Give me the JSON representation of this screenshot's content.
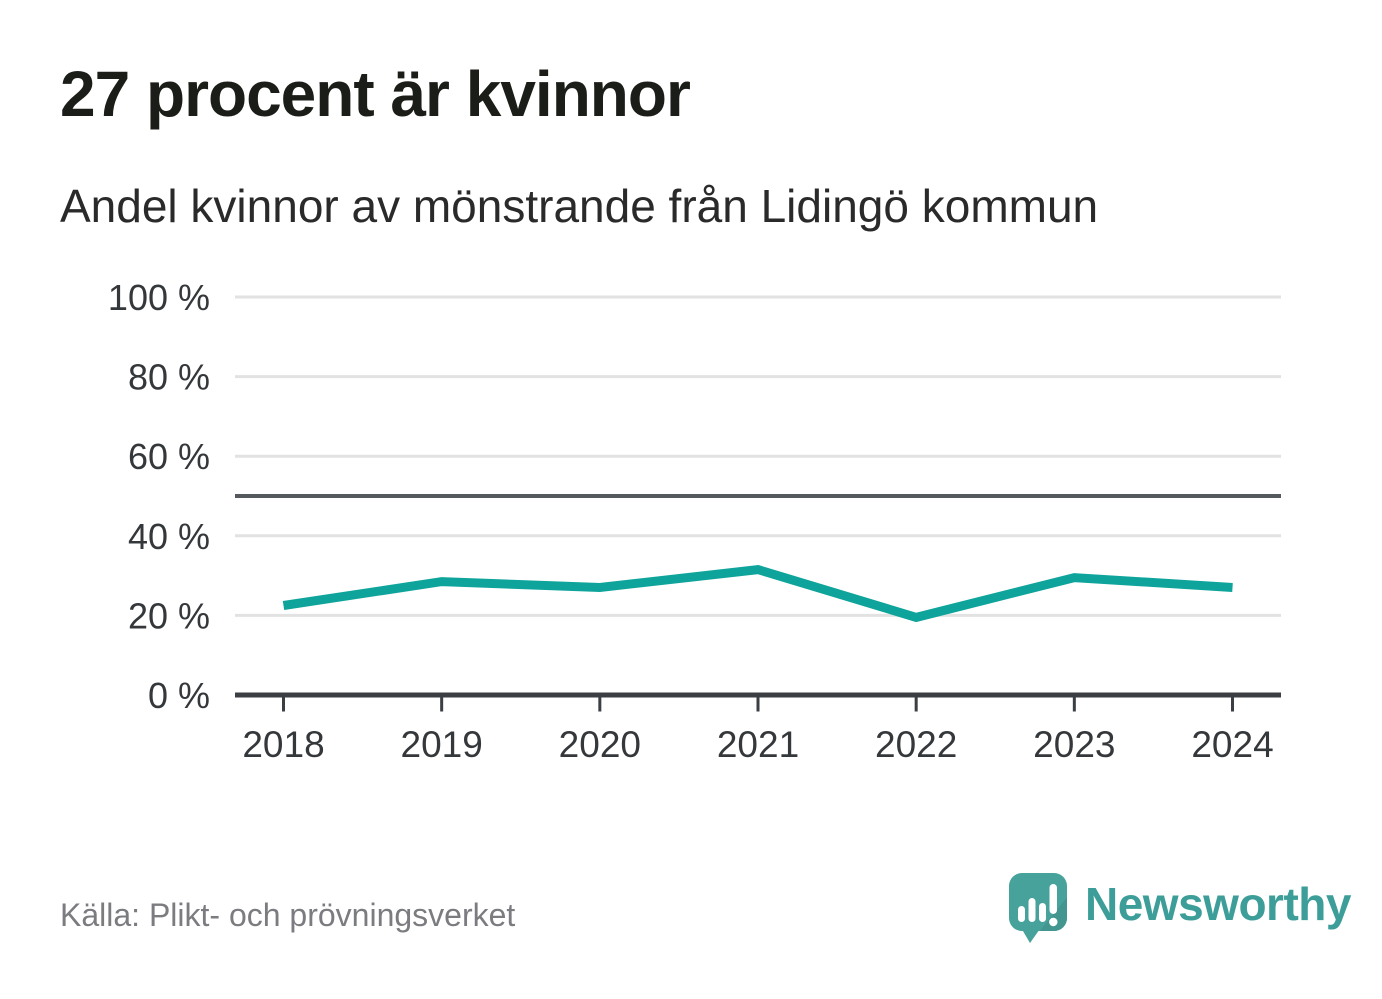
{
  "header": {
    "title": "27 procent är kvinnor",
    "subtitle": "Andel kvinnor av mönstrande från Lidingö kommun"
  },
  "footer": {
    "source": "Källa: Plikt- och prövningsverket",
    "brand": "Newsworthy",
    "brand_icon": "newsworthy-speech-bubble-bar-chart-exclamation"
  },
  "colors": {
    "line": "#0ea49b",
    "grid": "#e2e2e2",
    "reference_line": "#55595d",
    "axis": "#3b3e42",
    "tick_label": "#35383b",
    "title": "#1b1d18",
    "subtitle": "#2a2a2a",
    "source_text": "#7b7c80",
    "brand_text": "#3d9e99",
    "logo_bubble": "#47a29b",
    "logo_bubble_shade": "#42968f"
  },
  "chart_data": {
    "type": "line",
    "title": "27 procent är kvinnor",
    "subtitle": "Andel kvinnor av mönstrande från Lidingö kommun",
    "x": [
      2018,
      2019,
      2020,
      2021,
      2022,
      2023,
      2024
    ],
    "series": [
      {
        "name": "Andel kvinnor av mönstrande",
        "values": [
          22.5,
          28.5,
          27,
          31.5,
          19.5,
          29.5,
          27
        ]
      }
    ],
    "xlabel": "",
    "ylabel": "",
    "ylim": [
      0,
      100
    ],
    "yticks": [
      0,
      20,
      40,
      60,
      80,
      100
    ],
    "ytick_suffix": " %",
    "grid": "horizontal",
    "reference_line": 50,
    "legend": "none"
  }
}
